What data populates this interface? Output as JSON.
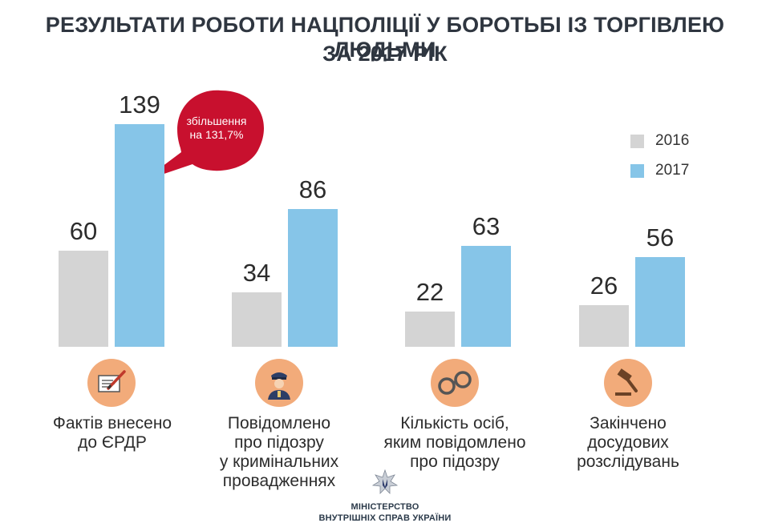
{
  "header": {
    "title_line1": "РЕЗУЛЬТАТИ РОБОТИ НАЦПОЛІЦІЇ У БОРОТЬБІ ІЗ ТОРГІВЛЕЮ ЛЮДЬМИ",
    "title_line2": "ЗА 2017 РІК"
  },
  "chart_data": {
    "type": "bar",
    "title": "РЕЗУЛЬТАТИ РОБОТИ НАЦПОЛІЦІЇ У БОРОТЬБІ ІЗ ТОРГІВЛЕЮ ЛЮДЬМИ ЗА 2017 РІК",
    "categories": [
      "Фактів внесено до ЄРДР",
      "Повідомлено про підозру у кримінальних провадженнях",
      "Кількість осіб, яким повідомлено про підозру",
      "Закінчено досудових розслідувань"
    ],
    "series": [
      {
        "name": "2016",
        "values": [
          60,
          34,
          22,
          26
        ],
        "color": "#d4d4d4"
      },
      {
        "name": "2017",
        "values": [
          139,
          86,
          63,
          56
        ],
        "color": "#86c5e8"
      }
    ],
    "ylim": [
      0,
      139
    ],
    "grid": false,
    "legend": "top-right",
    "annotation": {
      "category_index": 0,
      "series": "2017",
      "text_line1": "збільшення",
      "text_line2": "на 131,7%",
      "color": "#c8102e"
    }
  },
  "category_labels": [
    {
      "lines": [
        "Фактів внесено",
        "до ЄРДР"
      ],
      "icon": "document-pen-icon"
    },
    {
      "lines": [
        "Повідомлено",
        "про підозру",
        "у кримінальних",
        "провадженнях"
      ],
      "icon": "police-officer-icon"
    },
    {
      "lines": [
        "Кількість осіб,",
        "яким повідомлено",
        "про підозру"
      ],
      "icon": "handcuffs-icon"
    },
    {
      "lines": [
        "Закінчено",
        "досудових",
        "розслідувань"
      ],
      "icon": "gavel-icon"
    }
  ],
  "icon_color": "#f2ab7a",
  "footer": {
    "ministry_line1": "МІНІСТЕРСТВО",
    "ministry_line2": "ВНУТРІШНІХ СПРАВ УКРАЇНИ"
  }
}
